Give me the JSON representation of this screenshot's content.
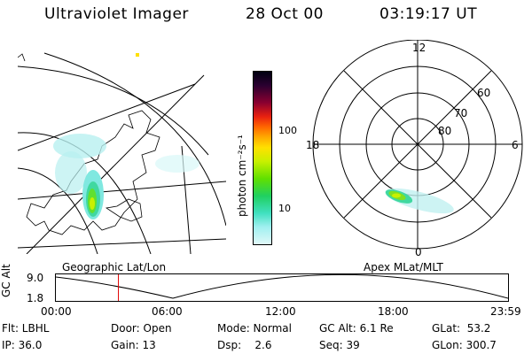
{
  "header": {
    "instrument": "Ultraviolet Imager",
    "date": "28 Oct 00",
    "time": "03:19:17 UT"
  },
  "colorbar": {
    "unit_label": "photon cm⁻²s⁻¹",
    "ticks": [
      "100",
      "10"
    ],
    "colors": [
      "#000010",
      "#2a0030",
      "#5a0040",
      "#8a0030",
      "#c00020",
      "#e82010",
      "#ff6600",
      "#ffaa00",
      "#ffe000",
      "#c8f000",
      "#60e000",
      "#20d060",
      "#40e0c0",
      "#a0f0f0",
      "#e0f8f8"
    ]
  },
  "left_panel": {
    "label": "Geographic Lat/Lon"
  },
  "right_panel": {
    "label": "Apex MLat/MLT",
    "mlt_labels": [
      "12",
      "18",
      "6",
      "0"
    ],
    "mlat_labels": [
      "60",
      "70",
      "80"
    ]
  },
  "timeline": {
    "y_axis_label": "GC Alt",
    "y_ticks": [
      "9.0",
      "1.8"
    ],
    "x_ticks": [
      "00:00",
      "06:00",
      "12:00",
      "18:00",
      "23:59"
    ],
    "marker_color": "#e00000",
    "marker_time_hours": 3.32
  },
  "info": {
    "filter": "Flt: LBHL",
    "door": "Door: Open",
    "mode": "Mode: Normal",
    "gc_alt": "GC Alt: 6.1 Re",
    "glat": "GLat:  53.2",
    "ip": "IP: 36.0",
    "gain": "Gain: 13",
    "dsp": "Dsp:    2.6",
    "seq": "Seq: 39",
    "glon": "GLon: 300.7"
  }
}
